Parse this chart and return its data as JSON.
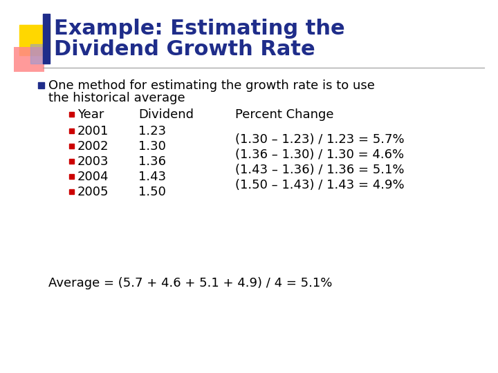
{
  "title_line1": "Example: Estimating the",
  "title_line2": "Dividend Growth Rate",
  "title_color": "#1F2D8A",
  "bg_color": "#FFFFFF",
  "col_header_year": "Year",
  "col_header_div": "Dividend",
  "col_header_pct": "Percent Change",
  "years": [
    "2001",
    "2002",
    "2003",
    "2004",
    "2005"
  ],
  "dividends": [
    "1.23",
    "1.30",
    "1.36",
    "1.43",
    "1.50"
  ],
  "pct_changes": [
    "(1.30 – 1.23) / 1.23 = 5.7%",
    "(1.36 – 1.30) / 1.30 = 4.6%",
    "(1.43 – 1.36) / 1.36 = 5.1%",
    "(1.50 – 1.43) / 1.43 = 4.9%"
  ],
  "average_text": "Average = (5.7 + 4.6 + 5.1 + 4.9) / 4 = 5.1%",
  "main_bullet_color": "#1F2D8A",
  "sub_bullet_color": "#CC0000",
  "text_color": "#000000",
  "separator_color": "#999999",
  "logo_yellow": "#FFD700",
  "logo_blue": "#1F2D8A",
  "logo_red_top": "#FF8888",
  "logo_red_bot": "#FF4444",
  "title_fontsize": 22,
  "body_fontsize": 13
}
